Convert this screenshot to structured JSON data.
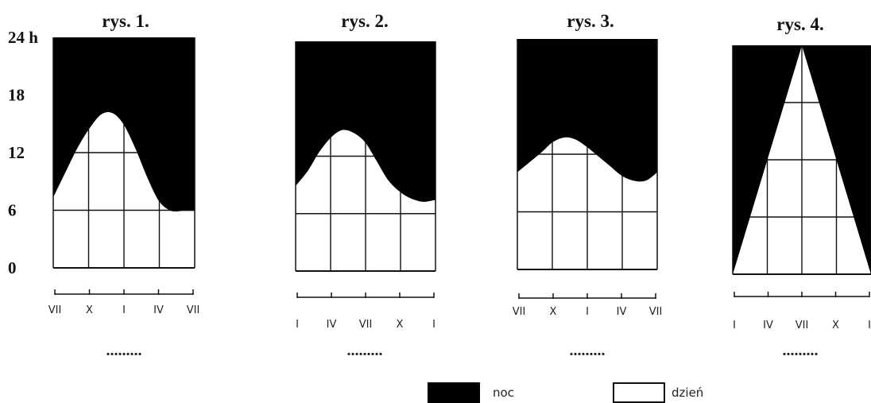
{
  "chart_data": [
    {
      "type": "area",
      "title": "rys. 1.",
      "answer_placeholder": ".........",
      "y_axis_labels": [
        "24 h",
        "18",
        "12",
        "6",
        "0"
      ],
      "y_ticks": [
        24,
        18,
        12,
        6,
        0
      ],
      "ylim": [
        0,
        24
      ],
      "months": [
        "VII",
        "X",
        "I",
        "IV",
        "VII"
      ],
      "series": [
        {
          "name": "dzień",
          "x": [
            0,
            1,
            2,
            3,
            4,
            5,
            6,
            7,
            8,
            9,
            10,
            11,
            12
          ],
          "values": [
            7.5,
            10,
            12.5,
            14.5,
            16,
            16.2,
            15,
            12.5,
            9.5,
            7,
            6,
            6,
            6
          ]
        }
      ]
    },
    {
      "type": "area",
      "title": "rys. 2.",
      "answer_placeholder": ".........",
      "y_ticks": [
        24,
        18,
        12,
        6,
        0
      ],
      "ylim": [
        0,
        24
      ],
      "months": [
        "I",
        "IV",
        "VII",
        "X",
        "I"
      ],
      "series": [
        {
          "name": "dzień",
          "x": [
            0,
            1,
            2,
            3,
            4,
            5,
            6,
            7,
            8,
            9,
            10,
            11,
            12
          ],
          "values": [
            9,
            10.5,
            12.5,
            14,
            14.8,
            14.5,
            13.5,
            11.5,
            9.5,
            8.3,
            7.6,
            7.3,
            7.5
          ]
        }
      ]
    },
    {
      "type": "area",
      "title": "rys. 3.",
      "answer_placeholder": ".........",
      "y_ticks": [
        24,
        18,
        12,
        6,
        0
      ],
      "ylim": [
        0,
        24
      ],
      "months": [
        "VII",
        "X",
        "I",
        "IV",
        "VII"
      ],
      "series": [
        {
          "name": "dzień",
          "x": [
            0,
            1,
            2,
            3,
            4,
            5,
            6,
            7,
            8,
            9,
            10,
            11,
            12
          ],
          "values": [
            10.2,
            11.2,
            12.2,
            13.3,
            13.8,
            13.6,
            12.8,
            11.8,
            10.8,
            9.8,
            9.3,
            9.3,
            10.2
          ]
        }
      ]
    },
    {
      "type": "area",
      "title": "rys. 4.",
      "answer_placeholder": ".........",
      "y_ticks": [
        24,
        18,
        12,
        6,
        0
      ],
      "ylim": [
        0,
        24
      ],
      "months": [
        "I",
        "IV",
        "VII",
        "X",
        "I"
      ],
      "note": "day region is a triangle: 0 h at the year ends, 24 h at VII",
      "series": [
        {
          "name": "dzień",
          "apex_month": "VII"
        }
      ]
    }
  ],
  "legend": {
    "items": [
      {
        "label": "noc",
        "color": "#000000"
      },
      {
        "label": "dzień",
        "color": "#ffffff"
      }
    ]
  },
  "colors": {
    "night": "#000000",
    "day": "#ffffff",
    "grid": "#111111"
  }
}
